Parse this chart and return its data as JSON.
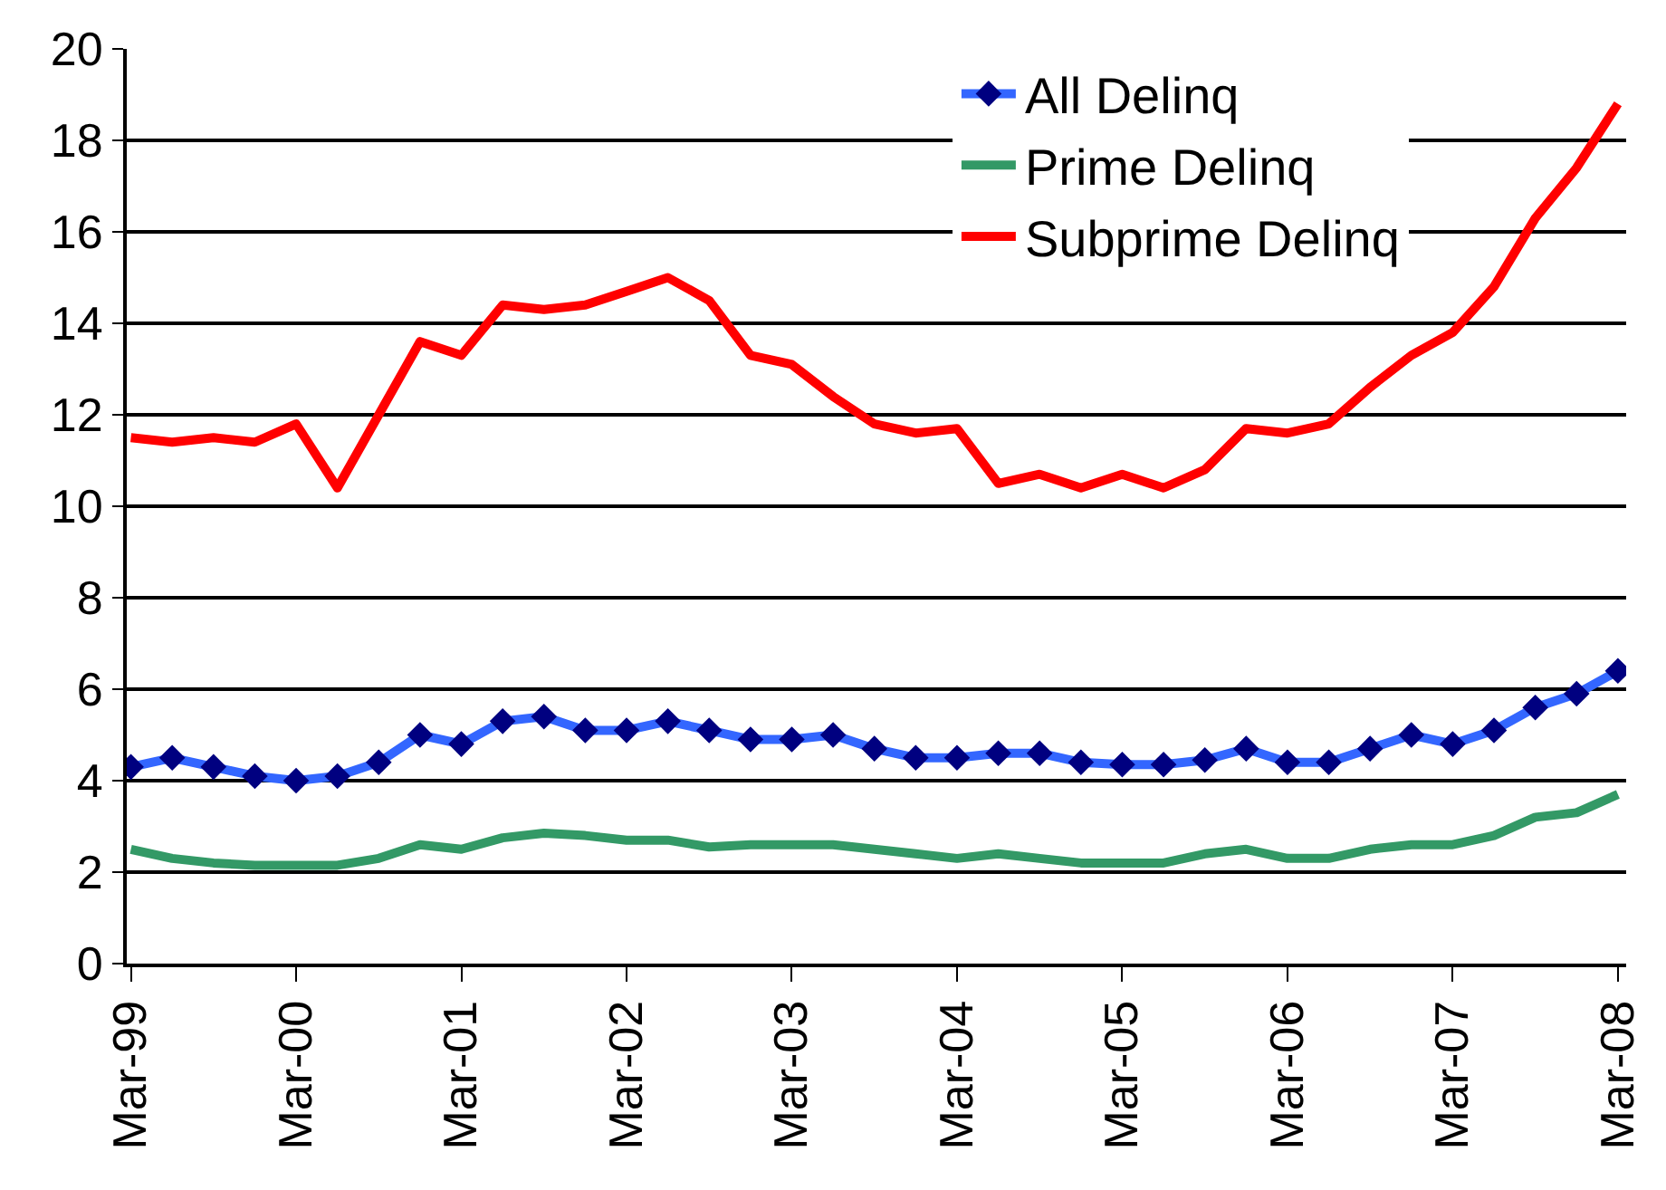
{
  "chart_data": {
    "type": "line",
    "categories": [
      "Mar-99",
      null,
      null,
      null,
      "Mar-00",
      null,
      null,
      null,
      "Mar-01",
      null,
      null,
      null,
      "Mar-02",
      null,
      null,
      null,
      "Mar-03",
      null,
      null,
      null,
      "Mar-04",
      null,
      null,
      null,
      "Mar-05",
      null,
      null,
      null,
      "Mar-06",
      null,
      null,
      null,
      "Mar-07",
      null,
      null,
      null,
      "Mar-08"
    ],
    "series": [
      {
        "name": "All Delinq",
        "color": "#3366ff",
        "marker": "diamond",
        "values": [
          4.3,
          4.5,
          4.3,
          4.1,
          4.0,
          4.1,
          4.4,
          5.0,
          4.8,
          5.3,
          5.4,
          5.1,
          5.1,
          5.3,
          5.1,
          4.9,
          4.9,
          5.0,
          4.7,
          4.5,
          4.5,
          4.6,
          4.6,
          4.4,
          4.35,
          4.35,
          4.45,
          4.7,
          4.4,
          4.4,
          4.7,
          5.0,
          4.8,
          5.1,
          5.6,
          5.9,
          6.4
        ]
      },
      {
        "name": "Prime Delinq",
        "color": "#339966",
        "values": [
          2.5,
          2.3,
          2.2,
          2.15,
          2.15,
          2.15,
          2.3,
          2.6,
          2.5,
          2.75,
          2.85,
          2.8,
          2.7,
          2.7,
          2.55,
          2.6,
          2.6,
          2.6,
          2.5,
          2.4,
          2.3,
          2.4,
          2.3,
          2.2,
          2.2,
          2.2,
          2.4,
          2.5,
          2.3,
          2.3,
          2.5,
          2.6,
          2.6,
          2.8,
          3.2,
          3.3,
          3.7
        ]
      },
      {
        "name": "Subprime Delinq",
        "color": "#ff0000",
        "values": [
          11.5,
          11.4,
          11.5,
          11.4,
          11.8,
          10.4,
          12.0,
          13.6,
          13.3,
          14.4,
          14.3,
          14.4,
          14.7,
          15.0,
          14.5,
          13.3,
          13.1,
          12.4,
          11.8,
          11.6,
          11.7,
          10.5,
          10.7,
          10.4,
          10.7,
          10.4,
          10.8,
          11.7,
          11.6,
          11.8,
          12.6,
          13.3,
          13.8,
          14.8,
          16.3,
          17.4,
          18.8
        ]
      }
    ],
    "ylim": [
      0,
      20
    ],
    "yticks": [
      0,
      2,
      4,
      6,
      8,
      10,
      12,
      14,
      16,
      18,
      20
    ],
    "grid": "y",
    "legend": "top right",
    "line_style": "solid"
  }
}
